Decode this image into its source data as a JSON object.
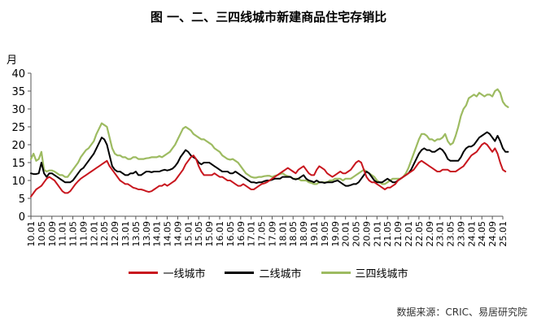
{
  "chart_data": {
    "type": "line",
    "title": "图  一、二、三四线城市新建商品住宅存销比",
    "ylabel": "月",
    "ylim": [
      0,
      40
    ],
    "yticks": [
      "0",
      "5",
      "10",
      "15",
      "20",
      "25",
      "30",
      "35",
      "40"
    ],
    "xticks": [
      "10.01",
      "10.05",
      "10.09",
      "11.01",
      "11.05",
      "11.09",
      "12.01",
      "12.05",
      "12.09",
      "13.01",
      "13.05",
      "13.09",
      "14.01",
      "14.05",
      "14.09",
      "15.01",
      "15.05",
      "15.09",
      "16.01",
      "16.05",
      "16.09",
      "17.01",
      "17.05",
      "17.09",
      "18.01",
      "18.05",
      "18.09",
      "19.01",
      "19.05",
      "19.09",
      "20.01",
      "20.05",
      "20.09",
      "21.01",
      "21.05",
      "21.09",
      "22.01",
      "22.05",
      "22.09",
      "23.01",
      "23.05",
      "23.09",
      "24.01",
      "24.05",
      "24.09",
      "25.01"
    ],
    "grid": false,
    "legend_position": "bottom",
    "x_count": 181,
    "series": [
      {
        "name": "一线城市",
        "color": "#c8161e",
        "values": [
          5.5,
          6.5,
          7.5,
          8,
          8.5,
          9.5,
          10.5,
          11,
          10.5,
          10,
          9,
          8,
          7,
          6.5,
          6.5,
          7,
          8,
          9,
          9.8,
          10.5,
          11,
          11.5,
          12,
          12.5,
          13,
          13.5,
          14,
          14.5,
          15,
          15.5,
          14,
          13,
          12,
          11,
          10,
          9.5,
          9,
          9,
          8.5,
          8,
          7.8,
          7.5,
          7.5,
          7.3,
          7,
          6.8,
          7,
          7.5,
          8,
          8.5,
          8.5,
          9,
          8.5,
          9,
          9.5,
          10,
          11,
          12,
          13,
          14.5,
          15.5,
          16.5,
          17,
          16,
          14,
          12.5,
          11.5,
          11.5,
          11.5,
          11.5,
          12,
          11.5,
          11,
          11,
          10.5,
          10,
          10,
          9.5,
          9,
          8.5,
          8.5,
          9,
          8.5,
          8,
          7.5,
          7.5,
          8,
          8.5,
          9,
          9.2,
          9.5,
          10,
          10.5,
          11,
          11.5,
          12,
          12.5,
          13,
          13.5,
          13,
          12.5,
          12,
          13,
          13.5,
          14,
          13,
          12,
          11.5,
          11.5,
          13,
          14,
          13.5,
          13,
          12,
          11.5,
          11,
          11.5,
          12,
          12.5,
          12,
          12,
          12.5,
          13,
          14,
          15,
          15.5,
          15,
          13,
          11,
          10,
          9.5,
          9.5,
          9,
          8.5,
          8,
          7.5,
          8,
          8,
          8.5,
          9,
          10,
          10.5,
          11,
          11.5,
          12,
          12.5,
          13,
          14,
          15,
          15.5,
          15,
          14.5,
          14,
          13.5,
          13,
          12.5,
          12.5,
          13,
          13,
          13,
          12.5,
          12.5,
          12.5,
          13,
          13.5,
          14,
          15,
          16,
          17,
          17.5,
          18,
          19,
          20,
          20.5,
          20,
          19,
          18,
          19,
          17.5,
          15,
          13,
          12.5
        ],
        "width": 2
      },
      {
        "name": "二线城市",
        "color": "#000000",
        "values": [
          12,
          11.8,
          11.8,
          12,
          15,
          12,
          11,
          12,
          12,
          11.5,
          11,
          10.5,
          10,
          9.5,
          9.5,
          9.5,
          10,
          11,
          12,
          13,
          13.5,
          14.5,
          15.5,
          16.5,
          17.5,
          19,
          20.5,
          22,
          21.5,
          20,
          17,
          14,
          13,
          12.5,
          12.5,
          12,
          11.5,
          11.5,
          12,
          12,
          12.5,
          11.5,
          11.5,
          12,
          12.5,
          12.5,
          12.3,
          12.5,
          12.5,
          12.5,
          12.8,
          13,
          12.8,
          13,
          13.3,
          14,
          15,
          16.5,
          17.5,
          18.5,
          18,
          17,
          16.5,
          16,
          15,
          14.5,
          15,
          15,
          15,
          14.5,
          14,
          13.5,
          13,
          12.5,
          12.5,
          12.5,
          12,
          12,
          12.5,
          12,
          11.5,
          11,
          10.5,
          10,
          9.5,
          9.5,
          9.3,
          9.5,
          9.5,
          9.8,
          10,
          10,
          10.2,
          10.5,
          10.5,
          10.5,
          11,
          11,
          11,
          11,
          10.5,
          10.3,
          10.5,
          11,
          11.5,
          10.5,
          10,
          9.8,
          9.5,
          10,
          9.5,
          9.5,
          9.3,
          9.5,
          9.5,
          9.5,
          9.8,
          10,
          9.5,
          9,
          8.5,
          8.5,
          8.7,
          9,
          9,
          9.5,
          10.5,
          11.5,
          12.5,
          12,
          11,
          10,
          9.5,
          9.5,
          9.5,
          10,
          10.5,
          10,
          9.5,
          9.5,
          10,
          10.5,
          11,
          11.5,
          12,
          13,
          14.5,
          16,
          17.5,
          18.5,
          19,
          18.5,
          18.5,
          18,
          18,
          18.5,
          19,
          18.5,
          17.5,
          16,
          15.5,
          15.5,
          15.5,
          15.5,
          16.5,
          18,
          19,
          19.5,
          19.5,
          20,
          21,
          22,
          22.5,
          23,
          23.5,
          23,
          22,
          21,
          22.5,
          21,
          19,
          18,
          18
        ],
        "width": 2
      },
      {
        "name": "三四线城市",
        "color": "#9dbb61",
        "values": [
          16,
          17.5,
          15.5,
          16,
          18,
          13,
          12.5,
          12.8,
          12.8,
          12.5,
          12,
          11.5,
          11.5,
          11,
          11,
          12,
          13,
          14,
          15,
          16.5,
          17.5,
          18.5,
          19,
          20,
          21,
          23,
          24.5,
          26,
          25.5,
          25,
          22,
          19,
          17.5,
          17,
          17,
          16.5,
          16.5,
          16,
          16,
          16.5,
          16.5,
          16,
          16,
          16,
          16.2,
          16.3,
          16.5,
          16.5,
          16.5,
          16.8,
          16.5,
          17,
          17.5,
          18,
          19,
          20,
          21.5,
          23,
          24.5,
          25,
          24.5,
          24,
          23,
          22.5,
          22,
          21.5,
          21.5,
          21,
          20.5,
          20,
          19,
          18.5,
          18,
          17,
          16.5,
          16,
          15.8,
          16,
          15.5,
          15,
          14,
          13,
          12,
          11.5,
          11,
          10.8,
          10.8,
          11,
          11,
          11.2,
          11.3,
          11.3,
          11,
          11.3,
          11.5,
          11.8,
          12,
          11.5,
          11.2,
          11,
          10.5,
          10.5,
          10.5,
          10,
          10,
          10,
          9.5,
          9.3,
          9,
          9,
          9.5,
          9.5,
          9.5,
          9.5,
          10,
          10,
          10.5,
          10.5,
          10.5,
          10,
          10.5,
          10.5,
          10.5,
          11,
          11.5,
          12,
          12.5,
          13,
          12.5,
          12,
          11.5,
          11,
          10,
          9.5,
          9,
          9,
          9.5,
          10,
          10.5,
          10.5,
          10.5,
          10.5,
          11,
          12,
          13.5,
          15.5,
          17.5,
          19.5,
          21.5,
          23,
          23,
          22.5,
          21.5,
          21.5,
          21,
          21.5,
          21.5,
          22,
          23,
          21,
          20,
          20.5,
          22.5,
          25,
          28,
          30,
          31,
          33,
          33.5,
          34,
          33.5,
          34.5,
          34,
          33.5,
          34,
          34,
          33.5,
          35,
          35.5,
          34.5,
          32,
          31,
          30.5
        ],
        "width": 2.2
      }
    ],
    "source": "数据来源：CRIC、易居研究院"
  }
}
